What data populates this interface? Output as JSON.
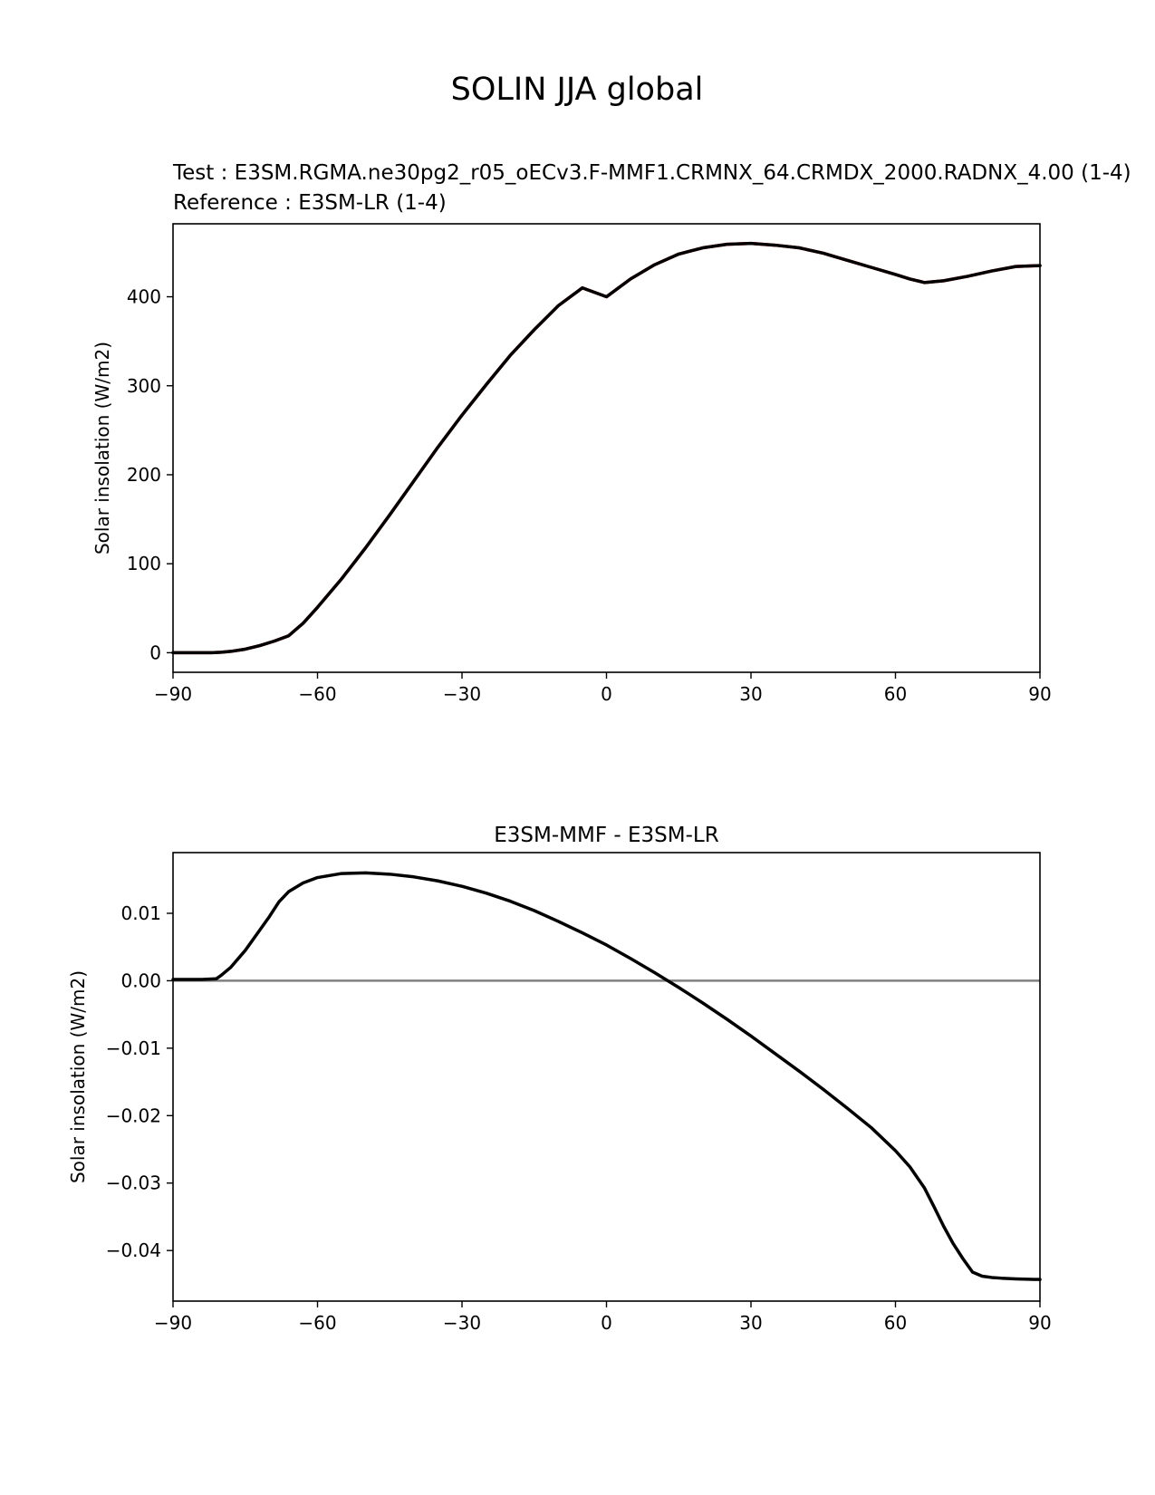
{
  "figure": {
    "suptitle": "SOLIN JJA global",
    "test_label": "Test : E3SM.RGMA.ne30pg2_r05_oECv3.F-MMF1.CRMNX_64.CRMDX_2000.RADNX_4.00 (1-4)",
    "reference_label": "Reference : E3SM-LR (1-4)",
    "reference_color": "#ff0000"
  },
  "chart_data": [
    {
      "type": "line",
      "title": "",
      "xlabel": "",
      "ylabel": "Solar insolation (W/m2)",
      "xlim": [
        -90,
        90
      ],
      "ylim": [
        -22,
        482
      ],
      "xticks": [
        -90,
        -60,
        -30,
        0,
        30,
        60,
        90
      ],
      "xtick_labels": [
        "−90",
        "−60",
        "−30",
        "0",
        "30",
        "60",
        "90"
      ],
      "yticks": [
        0,
        100,
        200,
        300,
        400
      ],
      "ytick_labels": [
        "0",
        "100",
        "200",
        "300",
        "400"
      ],
      "grid": false,
      "series": [
        {
          "color": "#ff0000",
          "x": [
            -90,
            -86,
            -82,
            -80,
            -78,
            -75,
            -72,
            -69,
            -66,
            -63,
            -60,
            -55,
            -50,
            -45,
            -40,
            -35,
            -30,
            -25,
            -20,
            -15,
            -10,
            -5,
            0,
            5,
            10,
            15,
            20,
            25,
            30,
            35,
            40,
            45,
            50,
            55,
            60,
            63,
            66,
            68,
            70,
            75,
            80,
            85,
            90
          ],
          "y": [
            0,
            0,
            0,
            0.5,
            1.5,
            4,
            8,
            13,
            19,
            33,
            51,
            83,
            118,
            155,
            193,
            231,
            267,
            301,
            334,
            363,
            390,
            410,
            400,
            420,
            436,
            448,
            455,
            459,
            460,
            458,
            455,
            449,
            441,
            433,
            425,
            420,
            416,
            417,
            418,
            423,
            429,
            434,
            435
          ]
        },
        {
          "color": "#000000",
          "x": [
            -90,
            -86,
            -82,
            -80,
            -78,
            -75,
            -72,
            -69,
            -66,
            -63,
            -60,
            -55,
            -50,
            -45,
            -40,
            -35,
            -30,
            -25,
            -20,
            -15,
            -10,
            -5,
            0,
            5,
            10,
            15,
            20,
            25,
            30,
            35,
            40,
            45,
            50,
            55,
            60,
            63,
            66,
            68,
            70,
            75,
            80,
            85,
            90
          ],
          "y": [
            0,
            0,
            0,
            0.5,
            1.5,
            4,
            8,
            13,
            19,
            33,
            51,
            83,
            118,
            155,
            193,
            231,
            267,
            301,
            334,
            363,
            390,
            410,
            400,
            420,
            436,
            448,
            455,
            459,
            460,
            458,
            455,
            449,
            441,
            433,
            425,
            420,
            416,
            417,
            418,
            423,
            429,
            434,
            435
          ]
        }
      ]
    },
    {
      "type": "line",
      "title": "E3SM-MMF - E3SM-LR",
      "xlabel": "",
      "ylabel": "Solar insolation (W/m2)",
      "xlim": [
        -90,
        90
      ],
      "ylim": [
        -0.0475,
        0.019
      ],
      "xticks": [
        -90,
        -60,
        -30,
        0,
        30,
        60,
        90
      ],
      "xtick_labels": [
        "−90",
        "−60",
        "−30",
        "0",
        "30",
        "60",
        "90"
      ],
      "yticks": [
        0.01,
        0.0,
        -0.01,
        -0.02,
        -0.03,
        -0.04
      ],
      "ytick_labels": [
        "0.01",
        "0.00",
        "−0.01",
        "−0.02",
        "−0.03",
        "−0.04"
      ],
      "grid": false,
      "zero_line_color": "#808080",
      "series": [
        {
          "color": "#000000",
          "x": [
            -90,
            -84,
            -81,
            -80,
            -78,
            -75,
            -72,
            -70,
            -68,
            -66,
            -63,
            -60,
            -55,
            -50,
            -45,
            -40,
            -35,
            -30,
            -25,
            -20,
            -15,
            -10,
            -5,
            0,
            5,
            10,
            15,
            20,
            25,
            30,
            35,
            40,
            45,
            50,
            55,
            60,
            63,
            66,
            68,
            70,
            72,
            74,
            76,
            78,
            80,
            82,
            85,
            90
          ],
          "y": [
            0.0002,
            0.0002,
            0.0003,
            0.0008,
            0.002,
            0.0045,
            0.0075,
            0.0095,
            0.0117,
            0.0132,
            0.0145,
            0.0153,
            0.0159,
            0.016,
            0.0158,
            0.0154,
            0.0148,
            0.014,
            0.013,
            0.0118,
            0.0104,
            0.0088,
            0.0071,
            0.0053,
            0.0033,
            0.0012,
            -0.001,
            -0.0033,
            -0.0057,
            -0.0082,
            -0.0108,
            -0.0134,
            -0.0161,
            -0.0189,
            -0.0218,
            -0.0252,
            -0.0276,
            -0.0307,
            -0.0335,
            -0.0364,
            -0.039,
            -0.0412,
            -0.0432,
            -0.0438,
            -0.044,
            -0.0441,
            -0.0442,
            -0.0443
          ]
        }
      ]
    }
  ]
}
